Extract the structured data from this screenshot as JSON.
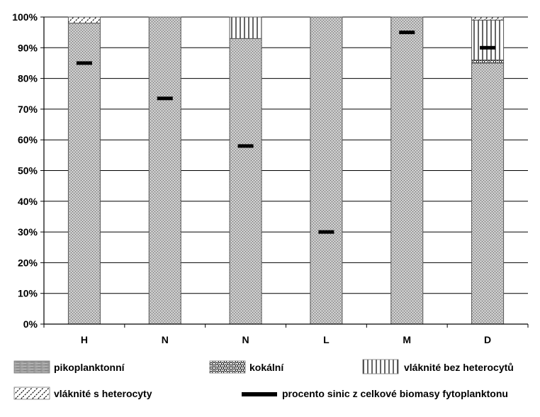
{
  "chart_data": {
    "type": "bar",
    "stacked": true,
    "categories": [
      "H",
      "N",
      "N",
      "L",
      "M",
      "D"
    ],
    "ylim": [
      0,
      100
    ],
    "y_ticks": [
      "0%",
      "10%",
      "20%",
      "30%",
      "40%",
      "50%",
      "60%",
      "70%",
      "80%",
      "90%",
      "100%"
    ],
    "grid": true,
    "legend_position": "bottom",
    "series": [
      {
        "name": "pikoplanktonní",
        "pattern": "piko",
        "values": [
          98,
          100,
          93,
          100,
          100,
          85
        ]
      },
      {
        "name": "kokální",
        "pattern": "kokal",
        "values": [
          0,
          0,
          0,
          0,
          0,
          1
        ]
      },
      {
        "name": "vláknité bez heterocytů",
        "pattern": "vertical",
        "values": [
          0,
          0,
          7,
          0,
          0,
          13
        ]
      },
      {
        "name": "vláknité s heterocyty",
        "pattern": "diagonal",
        "values": [
          2,
          0,
          0,
          0,
          0,
          1
        ]
      }
    ],
    "markers": {
      "name": "procento sinic z celkové biomasy fytoplanktonu",
      "values": [
        85,
        73.5,
        58,
        30,
        95,
        90
      ]
    },
    "colors": {
      "axis": "#000000",
      "grid": "#000000",
      "marker": "#000000",
      "bar_border": "#555555"
    }
  }
}
